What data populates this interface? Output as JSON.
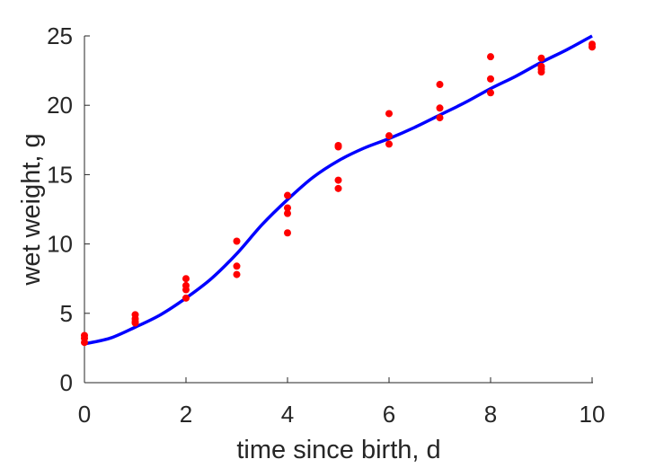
{
  "chart_data": {
    "type": "scatter",
    "title": "",
    "xlabel": "time since birth, d",
    "ylabel": "wet weight, g",
    "xlim": [
      0,
      10
    ],
    "ylim": [
      0,
      25
    ],
    "xticks": [
      0,
      2,
      4,
      6,
      8,
      10
    ],
    "yticks": [
      0,
      5,
      10,
      15,
      20,
      25
    ],
    "grid": false,
    "series": [
      {
        "kind": "scatter",
        "color": "#ff0000",
        "points": [
          [
            0,
            3.4
          ],
          [
            0,
            3.2
          ],
          [
            0,
            2.9
          ],
          [
            1,
            4.9
          ],
          [
            1,
            4.6
          ],
          [
            1,
            4.4
          ],
          [
            1,
            4.3
          ],
          [
            2,
            7.5
          ],
          [
            2,
            7.0
          ],
          [
            2,
            6.7
          ],
          [
            2,
            6.1
          ],
          [
            3,
            10.2
          ],
          [
            3,
            8.4
          ],
          [
            3,
            7.8
          ],
          [
            4,
            13.5
          ],
          [
            4,
            12.6
          ],
          [
            4,
            12.2
          ],
          [
            4,
            10.8
          ],
          [
            5,
            17.1
          ],
          [
            5,
            17.0
          ],
          [
            5,
            14.6
          ],
          [
            5,
            14.0
          ],
          [
            6,
            19.4
          ],
          [
            6,
            17.8
          ],
          [
            6,
            17.2
          ],
          [
            7,
            21.5
          ],
          [
            7,
            19.8
          ],
          [
            7,
            19.1
          ],
          [
            8,
            23.5
          ],
          [
            8,
            21.9
          ],
          [
            8,
            20.9
          ],
          [
            9,
            23.4
          ],
          [
            9,
            22.8
          ],
          [
            9,
            22.6
          ],
          [
            9,
            22.4
          ],
          [
            10,
            24.4
          ],
          [
            10,
            24.2
          ]
        ]
      },
      {
        "kind": "line",
        "color": "#0000ff",
        "points": [
          [
            0,
            2.8
          ],
          [
            0.5,
            3.2
          ],
          [
            1,
            4.0
          ],
          [
            1.5,
            4.9
          ],
          [
            2,
            6.1
          ],
          [
            2.5,
            7.5
          ],
          [
            3,
            9.3
          ],
          [
            3.5,
            11.4
          ],
          [
            4,
            13.2
          ],
          [
            4.5,
            14.8
          ],
          [
            5,
            16.0
          ],
          [
            5.5,
            16.9
          ],
          [
            6,
            17.6
          ],
          [
            6.5,
            18.4
          ],
          [
            7,
            19.3
          ],
          [
            7.5,
            20.2
          ],
          [
            8,
            21.2
          ],
          [
            8.5,
            22.1
          ],
          [
            9,
            23.1
          ],
          [
            9.5,
            24.0
          ],
          [
            10,
            25.0
          ]
        ]
      }
    ]
  }
}
